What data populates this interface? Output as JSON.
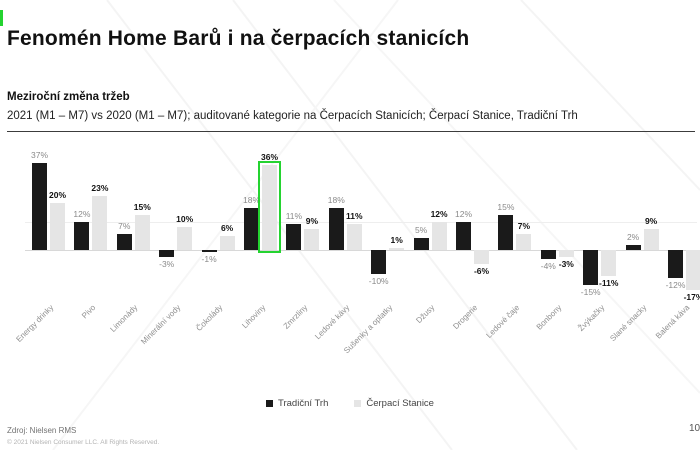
{
  "slide": {
    "title": "Fenomén Home Barů i na čerpacích stanicích",
    "accent_color": "#24d330",
    "page_number": "10"
  },
  "subtitle": {
    "heading": "Meziroční změna tržeb",
    "detail": "2021 (M1 – M7) vs 2020 (M1 – M7); auditované kategorie na Čerpacích Stanicích; Čerpací Stanice, Tradiční Trh"
  },
  "footer": {
    "source": "Zdroj: Nielsen RMS",
    "copyright": "© 2021 Nielsen Consumer LLC. All Rights Reserved."
  },
  "chart_data": {
    "type": "bar",
    "title": "Meziroční změna tržeb",
    "categories": [
      "Energy drinky",
      "Pivo",
      "Limonády",
      "Minerální vody",
      "Čokolády",
      "Lihoviny",
      "Zmrzliny",
      "Ledové kávy",
      "Sušenky a oplatky",
      "Džusy",
      "Drogerie",
      "Ledové čaje",
      "Bonbony",
      "Žvýkačky",
      "Slané snacky",
      "Balená káva"
    ],
    "series": [
      {
        "name": "Tradiční Trh",
        "color": "#1a1a1a",
        "values": [
          37,
          12,
          7,
          -3,
          -1,
          18,
          11,
          18,
          -10,
          5,
          12,
          15,
          -4,
          -15,
          2,
          -12
        ]
      },
      {
        "name": "Čerpací Stanice",
        "color": "#e5e5e5",
        "values": [
          20,
          23,
          15,
          10,
          6,
          36,
          9,
          11,
          1,
          12,
          -6,
          7,
          -3,
          -11,
          9,
          -17
        ]
      }
    ],
    "value_suffix": "%",
    "highlight": {
      "category": "Lihoviny",
      "series": "Čerpací Stanice",
      "color": "#24d330"
    },
    "xlabel": "",
    "ylabel": "",
    "ylim": [
      -20,
      40
    ],
    "grid": "single horizontal gridline + zero axis",
    "legend_position": "bottom-center"
  }
}
